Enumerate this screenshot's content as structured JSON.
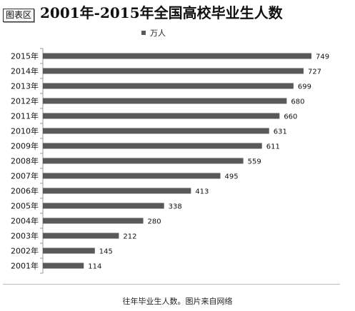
{
  "header": {
    "badge": "图表区",
    "title": "2001年-2015年全国高校毕业生人数"
  },
  "caption": "往年毕业生人数。图片来自网络",
  "colors": {
    "bar": "#595959",
    "text": "#111111"
  },
  "chart_data": {
    "type": "bar",
    "orientation": "horizontal",
    "title": "2001年-2015年全国高校毕业生人数",
    "legend_position": "top",
    "grid": false,
    "categories": [
      "2015年",
      "2014年",
      "2013年",
      "2012年",
      "2011年",
      "2010年",
      "2009年",
      "2008年",
      "2007年",
      "2006年",
      "2005年",
      "2004年",
      "2003年",
      "2002年",
      "2001年"
    ],
    "series": [
      {
        "name": "万人",
        "values": [
          749,
          727,
          699,
          680,
          660,
          631,
          611,
          559,
          495,
          413,
          338,
          280,
          212,
          145,
          114
        ]
      }
    ],
    "xlim": [
      0,
      800
    ]
  }
}
